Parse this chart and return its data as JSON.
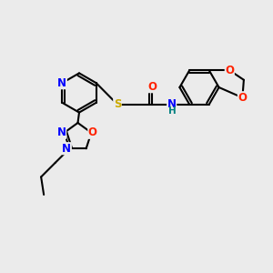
{
  "bg_color": "#ebebeb",
  "atom_colors": {
    "N": "#0000ff",
    "O": "#ff2200",
    "S": "#ccaa00",
    "NH": "#008080",
    "C": "#000000"
  },
  "bond_color": "#000000",
  "linewidth": 1.5,
  "font_size": 8.5
}
